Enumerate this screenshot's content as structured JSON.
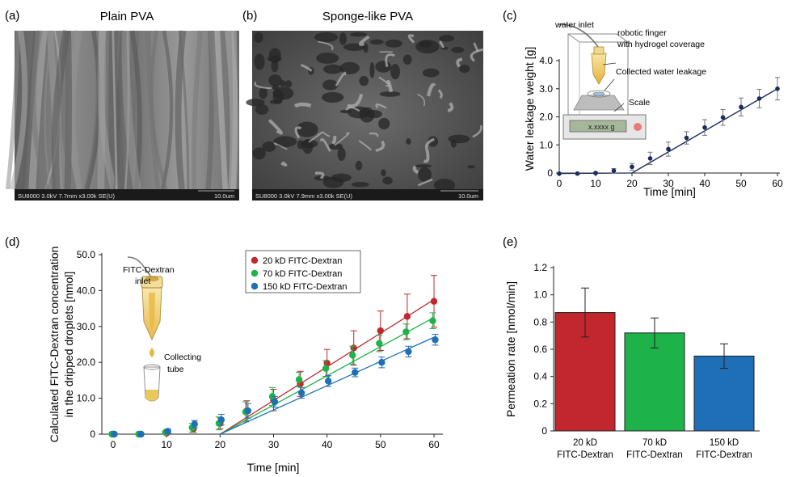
{
  "panels": {
    "a": {
      "letter": "(a)",
      "title": "Plain PVA",
      "sem_caption": "SU8000 3.0kV 7.7mm x3.00k SE(U)",
      "scale": "10.0um"
    },
    "b": {
      "letter": "(b)",
      "title": "Sponge-like PVA",
      "sem_caption": "SU8000 3.0kV 7.9mm x3.00k SE(U)",
      "scale": "10.0um"
    },
    "c": {
      "letter": "(c)"
    },
    "d": {
      "letter": "(d)"
    },
    "e": {
      "letter": "(e)"
    }
  },
  "illustration_c": {
    "water_inlet": "water inlet",
    "robotic_finger_1": "robotic finger",
    "robotic_finger_2": "with hydrogel coverage",
    "collected": "Collected water leakage",
    "scale": "Scale",
    "readout": "x.xxxx g"
  },
  "illustration_d": {
    "fitc_1": "FITC-Dextran",
    "fitc_2": "inlet",
    "collect_1": "Collecting",
    "collect_2": "tube"
  },
  "colors": {
    "red": "#c1272d",
    "green": "#1eb24a",
    "blue": "#1f6fb6",
    "navy": "#1d2a5c"
  },
  "chart_data": [
    {
      "panel": "c",
      "type": "line",
      "xlabel": "Time [min]",
      "ylabel": "Water leakage weight [g]",
      "xlim": [
        0,
        60
      ],
      "ylim": [
        0,
        4.0
      ],
      "xticks": [
        "0",
        "10",
        "20",
        "30",
        "40",
        "50",
        "60"
      ],
      "yticks": [
        "0",
        "1.0",
        "2.0",
        "3.0",
        "4.0"
      ],
      "series": [
        {
          "x": [
            0,
            5,
            10,
            15,
            20,
            25,
            30,
            35,
            40,
            45,
            50,
            55,
            60
          ],
          "y": [
            -0.02,
            -0.02,
            0.0,
            0.08,
            0.22,
            0.52,
            0.85,
            1.25,
            1.62,
            1.98,
            2.35,
            2.65,
            3.0
          ],
          "err": [
            0.02,
            0.02,
            0.03,
            0.08,
            0.12,
            0.22,
            0.25,
            0.22,
            0.28,
            0.28,
            0.32,
            0.33,
            0.4
          ]
        }
      ],
      "fit": {
        "x": [
          20,
          60
        ],
        "y": [
          0.0,
          3.0
        ]
      }
    },
    {
      "panel": "d",
      "type": "line",
      "xlabel": "Time [min]",
      "ylabel_1": "Calculated FITC-Dextran concentration",
      "ylabel_2": "in the dripped droplets [nmol]",
      "xlim": [
        0,
        60
      ],
      "ylim": [
        0,
        50
      ],
      "xticks": [
        "0",
        "10",
        "20",
        "30",
        "40",
        "50",
        "60"
      ],
      "yticks": [
        "0",
        "10.0",
        "20.0",
        "30.0",
        "40.0",
        "50.0"
      ],
      "series": [
        {
          "name": "20 kD FITC-Dextran",
          "x": [
            0,
            5,
            10,
            15,
            20,
            25,
            30,
            35,
            40,
            45,
            50,
            55,
            60
          ],
          "y": [
            0,
            0,
            0.3,
            1.5,
            3.0,
            6.5,
            9.5,
            14.0,
            19.8,
            24.0,
            28.8,
            32.8,
            37.0
          ],
          "err": [
            0,
            0,
            0.3,
            1.0,
            1.5,
            2.8,
            3.0,
            3.5,
            3.8,
            4.8,
            5.5,
            6.2,
            7.2
          ],
          "fit": {
            "x": [
              20,
              60
            ],
            "y": [
              0,
              37.5
            ]
          }
        },
        {
          "name": "70 kD FITC-Dextran",
          "x": [
            0,
            5,
            10,
            15,
            20,
            25,
            30,
            35,
            40,
            45,
            50,
            55,
            60
          ],
          "y": [
            0,
            0,
            0.5,
            1.8,
            3.0,
            6.2,
            10.5,
            15.2,
            18.3,
            22.0,
            25.3,
            28.5,
            31.6
          ],
          "err": [
            0,
            0,
            0.3,
            1.2,
            1.8,
            2.8,
            2.5,
            2.0,
            2.2,
            2.5,
            2.3,
            2.2,
            2.2
          ],
          "fit": {
            "x": [
              20,
              60
            ],
            "y": [
              0,
              32.5
            ]
          }
        },
        {
          "name": "150 kD FITC-Dextran",
          "x": [
            0,
            5,
            10,
            15,
            20,
            25,
            30,
            35,
            40,
            45,
            50,
            55,
            60
          ],
          "y": [
            0,
            0,
            0.8,
            2.8,
            4.0,
            6.5,
            9.0,
            11.5,
            14.8,
            17.2,
            20.0,
            23.0,
            26.3
          ],
          "err": [
            0,
            0,
            0.6,
            1.0,
            1.5,
            2.0,
            1.5,
            1.5,
            1.5,
            1.2,
            1.5,
            1.5,
            1.5
          ],
          "fit": {
            "x": [
              20,
              60
            ],
            "y": [
              0,
              27.0
            ]
          }
        }
      ]
    },
    {
      "panel": "e",
      "type": "bar",
      "ylabel": "Permeation rate [nmol/min]",
      "ylim": [
        0,
        1.2
      ],
      "yticks": [
        "0",
        "0.2",
        "0.4",
        "0.6",
        "0.8",
        "1.0",
        "1.2"
      ],
      "categories": [
        [
          "20 kD",
          "FITC-Dextran"
        ],
        [
          "70 kD",
          "FITC-Dextran"
        ],
        [
          "150 kD",
          "FITC-Dextran"
        ]
      ],
      "values": [
        0.87,
        0.72,
        0.55
      ],
      "err": [
        0.18,
        0.11,
        0.09
      ],
      "bar_colors": [
        "#c1272d",
        "#1eb24a",
        "#1f6fb6"
      ]
    }
  ]
}
